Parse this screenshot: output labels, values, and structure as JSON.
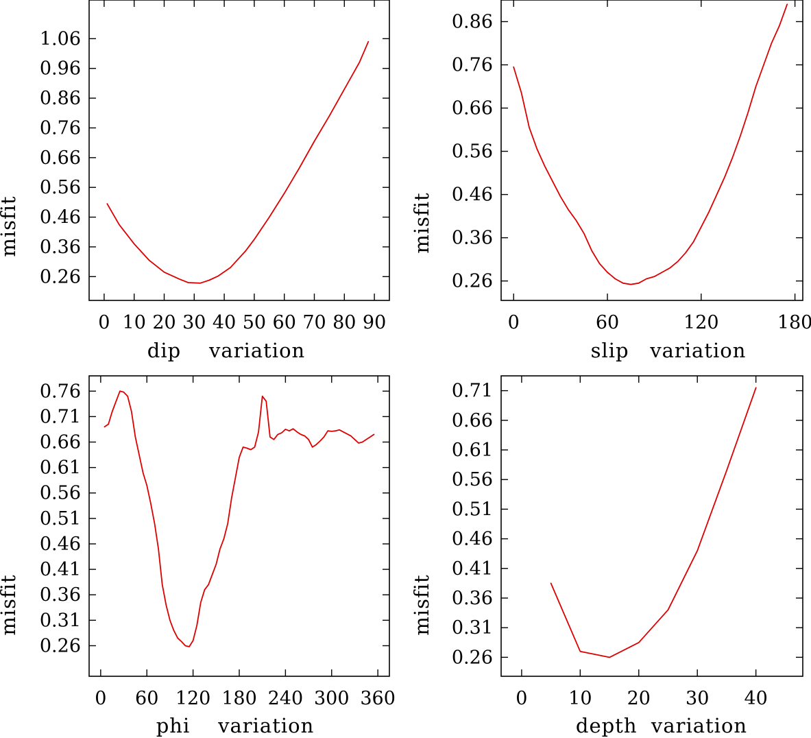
{
  "figure": {
    "line_color": "#dd0000",
    "axis_color": "#000000",
    "background": "#ffffff"
  },
  "chart_data": [
    {
      "type": "line",
      "xlabel": "dip    variation",
      "ylabel": "misfit",
      "xlim": [
        -5,
        95
      ],
      "ylim": [
        0.18,
        1.19
      ],
      "xticks": [
        0,
        10,
        20,
        30,
        40,
        50,
        60,
        70,
        80,
        90
      ],
      "xtick_labels": [
        "0",
        "10",
        "20",
        "30",
        "40",
        "50",
        "60",
        "70",
        "80",
        "90"
      ],
      "yticks": [
        0.26,
        0.36,
        0.46,
        0.56,
        0.66,
        0.76,
        0.86,
        0.96,
        1.06
      ],
      "ytick_labels": [
        "0.26",
        "0.36",
        "0.46",
        "0.56",
        "0.66",
        "0.76",
        "0.86",
        "0.96",
        "1.06"
      ],
      "series": [
        {
          "name": "dip",
          "x": [
            1,
            5,
            10,
            15,
            20,
            25,
            28,
            32,
            35,
            38,
            42,
            47,
            50,
            55,
            60,
            65,
            70,
            75,
            80,
            85,
            88
          ],
          "y": [
            0.505,
            0.435,
            0.37,
            0.315,
            0.275,
            0.252,
            0.24,
            0.238,
            0.248,
            0.262,
            0.29,
            0.345,
            0.385,
            0.46,
            0.54,
            0.625,
            0.715,
            0.8,
            0.89,
            0.98,
            1.05
          ]
        }
      ]
    },
    {
      "type": "line",
      "xlabel": "slip   variation",
      "ylabel": "misfit",
      "xlim": [
        -8,
        185
      ],
      "ylim": [
        0.215,
        0.91
      ],
      "xticks": [
        0,
        60,
        120,
        180
      ],
      "xtick_labels": [
        "0",
        "60",
        "120",
        "180"
      ],
      "yticks": [
        0.26,
        0.36,
        0.46,
        0.56,
        0.66,
        0.76,
        0.86
      ],
      "ytick_labels": [
        "0.26",
        "0.36",
        "0.46",
        "0.56",
        "0.66",
        "0.76",
        "0.86"
      ],
      "series": [
        {
          "name": "slip",
          "x": [
            0,
            5,
            10,
            15,
            20,
            25,
            30,
            35,
            40,
            45,
            50,
            55,
            60,
            65,
            70,
            75,
            80,
            85,
            90,
            95,
            100,
            105,
            110,
            115,
            120,
            125,
            130,
            135,
            140,
            145,
            150,
            155,
            160,
            165,
            170,
            175
          ],
          "y": [
            0.755,
            0.695,
            0.615,
            0.565,
            0.525,
            0.49,
            0.455,
            0.425,
            0.4,
            0.37,
            0.33,
            0.3,
            0.28,
            0.265,
            0.255,
            0.252,
            0.255,
            0.265,
            0.27,
            0.28,
            0.29,
            0.305,
            0.325,
            0.35,
            0.385,
            0.42,
            0.46,
            0.5,
            0.545,
            0.595,
            0.65,
            0.71,
            0.76,
            0.81,
            0.85,
            0.9
          ]
        }
      ]
    },
    {
      "type": "line",
      "xlabel": "phi    variation",
      "ylabel": "misfit",
      "xlim": [
        -15,
        375
      ],
      "ylim": [
        0.2,
        0.79
      ],
      "xticks": [
        0,
        60,
        120,
        180,
        240,
        300,
        360
      ],
      "xtick_labels": [
        "0",
        "60",
        "120",
        "180",
        "240",
        "300",
        "360"
      ],
      "yticks": [
        0.26,
        0.31,
        0.36,
        0.41,
        0.46,
        0.51,
        0.56,
        0.61,
        0.66,
        0.71,
        0.76
      ],
      "ytick_labels": [
        "0.26",
        "0.31",
        "0.36",
        "0.41",
        "0.46",
        "0.51",
        "0.56",
        "0.61",
        "0.66",
        "0.71",
        "0.76"
      ],
      "series": [
        {
          "name": "phi",
          "x": [
            5,
            10,
            15,
            20,
            25,
            30,
            35,
            40,
            45,
            50,
            55,
            60,
            65,
            70,
            75,
            80,
            85,
            90,
            95,
            100,
            105,
            110,
            115,
            120,
            125,
            130,
            135,
            140,
            145,
            150,
            155,
            160,
            165,
            170,
            175,
            180,
            185,
            190,
            195,
            200,
            205,
            210,
            215,
            220,
            225,
            230,
            235,
            240,
            245,
            250,
            255,
            260,
            265,
            270,
            275,
            280,
            285,
            290,
            295,
            300,
            305,
            310,
            315,
            320,
            325,
            330,
            335,
            340,
            345,
            350,
            355
          ],
          "y": [
            0.69,
            0.695,
            0.72,
            0.74,
            0.76,
            0.758,
            0.75,
            0.72,
            0.67,
            0.635,
            0.6,
            0.575,
            0.54,
            0.5,
            0.45,
            0.38,
            0.34,
            0.31,
            0.29,
            0.275,
            0.268,
            0.26,
            0.258,
            0.27,
            0.3,
            0.345,
            0.37,
            0.38,
            0.4,
            0.42,
            0.45,
            0.47,
            0.5,
            0.55,
            0.59,
            0.63,
            0.65,
            0.648,
            0.645,
            0.65,
            0.68,
            0.75,
            0.74,
            0.67,
            0.665,
            0.675,
            0.678,
            0.685,
            0.682,
            0.686,
            0.68,
            0.675,
            0.672,
            0.665,
            0.65,
            0.655,
            0.662,
            0.67,
            0.682,
            0.681,
            0.682,
            0.684,
            0.68,
            0.676,
            0.672,
            0.665,
            0.658,
            0.66,
            0.665,
            0.67,
            0.675
          ]
        }
      ]
    },
    {
      "type": "line",
      "xlabel": "depth  variation",
      "ylabel": "misfit",
      "xlim": [
        -3.5,
        48
      ],
      "ylim": [
        0.228,
        0.735
      ],
      "xticks": [
        0,
        10,
        20,
        30,
        40
      ],
      "xtick_labels": [
        "0",
        "10",
        "20",
        "30",
        "40"
      ],
      "yticks": [
        0.26,
        0.31,
        0.36,
        0.41,
        0.46,
        0.51,
        0.56,
        0.61,
        0.66,
        0.71
      ],
      "ytick_labels": [
        "0.26",
        "0.31",
        "0.36",
        "0.41",
        "0.46",
        "0.51",
        "0.56",
        "0.61",
        "0.66",
        "0.71"
      ],
      "series": [
        {
          "name": "depth",
          "x": [
            5,
            10,
            15,
            20,
            25,
            30,
            35,
            40
          ],
          "y": [
            0.385,
            0.27,
            0.26,
            0.285,
            0.34,
            0.44,
            0.575,
            0.715
          ]
        }
      ]
    }
  ]
}
